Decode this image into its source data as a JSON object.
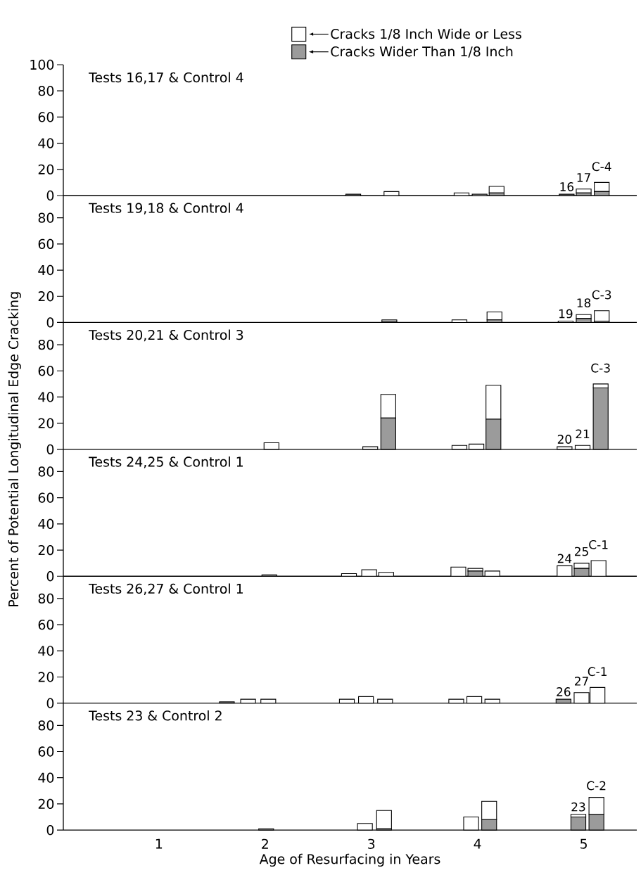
{
  "chart_data": [
    {
      "type": "bar",
      "title": "Tests 16,17 & Control 4",
      "stacked": true,
      "legend": "top",
      "tick_labels": "y",
      "xlim": [
        0.1,
        5.5
      ],
      "ylim": [
        0,
        100
      ],
      "yticks": [
        0,
        20,
        40,
        60,
        80,
        100
      ],
      "x": [
        2.83,
        3.19,
        3.85,
        4.02,
        4.18,
        4.84,
        5.0,
        5.17
      ],
      "series": [
        {
          "name": "Cracks Wider Than 1/8 Inch",
          "color": "#9b9b9b",
          "values": [
            1,
            0,
            0,
            0,
            2,
            1,
            2,
            3
          ]
        },
        {
          "name": "Cracks 1/8 Inch Wide or Less",
          "color": "#ffffff",
          "values": [
            null,
            3,
            2,
            1,
            5,
            0,
            3,
            7
          ]
        }
      ],
      "annotations": [
        {
          "text": "16",
          "x": 4.84,
          "y": 1
        },
        {
          "text": "17",
          "x": 5.0,
          "y": 5
        },
        {
          "text": "C-4",
          "x": 5.17,
          "y": 10
        }
      ]
    },
    {
      "type": "bar",
      "title": "Tests 19,18 & Control 4",
      "stacked": true,
      "tick_labels": "y",
      "xlim": [
        0.1,
        5.5
      ],
      "ylim": [
        0,
        97
      ],
      "yticks": [
        0,
        20,
        40,
        60,
        80
      ],
      "x": [
        3.17,
        3.83,
        4.16,
        4.83,
        5.0,
        5.17
      ],
      "series": [
        {
          "color": "#9b9b9b",
          "values": [
            1,
            0,
            2,
            0,
            3,
            1
          ]
        },
        {
          "color": "#ffffff",
          "values": [
            1,
            2,
            6,
            1,
            3,
            8
          ]
        }
      ],
      "annotations": [
        {
          "text": "19",
          "x": 4.83,
          "y": 1
        },
        {
          "text": "18",
          "x": 5.0,
          "y": 6
        },
        {
          "text": "C-3",
          "x": 5.17,
          "y": 9
        }
      ]
    },
    {
      "type": "bar",
      "title": "Tests 20,21 & Control 3",
      "ylabel": "Percent of Potential Longitudinal Edge Cracking",
      "stacked": true,
      "tick_labels": "y",
      "xlim": [
        0.1,
        5.5
      ],
      "ylim": [
        0,
        97
      ],
      "yticks": [
        0,
        20,
        40,
        60,
        80
      ],
      "x": [
        2.06,
        2.99,
        3.16,
        3.83,
        3.99,
        4.15,
        4.82,
        4.99,
        5.16
      ],
      "series": [
        {
          "color": "#9b9b9b",
          "values": [
            0,
            0,
            24,
            0,
            0,
            23,
            0,
            0,
            47
          ]
        },
        {
          "color": "#ffffff",
          "values": [
            5,
            2,
            18,
            3,
            4,
            26,
            2,
            3,
            3
          ]
        }
      ],
      "annotations": [
        {
          "text": "20",
          "x": 4.82,
          "y": 2
        },
        {
          "text": "21",
          "x": 4.99,
          "y": 3
        },
        {
          "text": "C-3",
          "x": 5.16,
          "y": 50
        }
      ]
    },
    {
      "type": "bar",
      "title": "Tests 24,25 & Control 1",
      "stacked": true,
      "tick_labels": "y",
      "xlim": [
        0.1,
        5.5
      ],
      "ylim": [
        0,
        97
      ],
      "yticks": [
        0,
        20,
        40,
        60,
        80
      ],
      "x": [
        2.04,
        2.79,
        2.98,
        3.14,
        3.82,
        3.98,
        4.14,
        4.82,
        4.98,
        5.14
      ],
      "series": [
        {
          "color": "#9b9b9b",
          "values": [
            1,
            0,
            0,
            0,
            0,
            4,
            0,
            0,
            6,
            0
          ]
        },
        {
          "color": "#ffffff",
          "values": [
            null,
            2,
            5,
            3,
            7,
            2,
            4,
            8,
            4,
            12
          ]
        }
      ],
      "annotations": [
        {
          "text": "24",
          "x": 4.82,
          "y": 8
        },
        {
          "text": "25",
          "x": 4.98,
          "y": 10
        },
        {
          "text": "C-1",
          "x": 5.14,
          "y": 12
        }
      ]
    },
    {
      "type": "bar",
      "title": "Tests 26,27 & Control 1",
      "stacked": true,
      "tick_labels": "y",
      "xlim": [
        0.1,
        5.5
      ],
      "ylim": [
        0,
        97
      ],
      "yticks": [
        0,
        20,
        40,
        60,
        80
      ],
      "x": [
        1.64,
        1.84,
        2.03,
        2.77,
        2.95,
        3.13,
        3.8,
        3.97,
        4.14,
        4.81,
        4.98,
        5.13
      ],
      "series": [
        {
          "color": "#9b9b9b",
          "values": [
            1,
            0,
            0,
            0,
            0,
            0,
            0,
            0,
            0,
            3,
            0,
            0
          ]
        },
        {
          "color": "#ffffff",
          "values": [
            0,
            3,
            3,
            3,
            5,
            3,
            3,
            5,
            3,
            0,
            8,
            12
          ]
        }
      ],
      "annotations": [
        {
          "text": "26",
          "x": 4.81,
          "y": 3
        },
        {
          "text": "27",
          "x": 4.98,
          "y": 8
        },
        {
          "text": "C-1",
          "x": 5.13,
          "y": 12
        }
      ]
    },
    {
      "type": "bar",
      "title": "Tests 23 & Control 2",
      "xlabel": "Age of Resurfacing in Years",
      "stacked": true,
      "xlim": [
        0.1,
        5.5
      ],
      "xticks": [
        1,
        2,
        3,
        4,
        5
      ],
      "ylim": [
        0,
        97
      ],
      "yticks": [
        0,
        20,
        40,
        60,
        80
      ],
      "x": [
        2.01,
        2.94,
        3.12,
        3.94,
        4.11,
        4.95,
        5.12
      ],
      "series": [
        {
          "color": "#9b9b9b",
          "values": [
            1,
            0,
            1,
            0,
            8,
            10,
            12
          ]
        },
        {
          "color": "#ffffff",
          "values": [
            0,
            5,
            14,
            10,
            14,
            2,
            13
          ]
        }
      ],
      "annotations": [
        {
          "text": "23",
          "x": 4.95,
          "y": 12
        },
        {
          "text": "C-2",
          "x": 5.12,
          "y": 25
        }
      ]
    }
  ]
}
